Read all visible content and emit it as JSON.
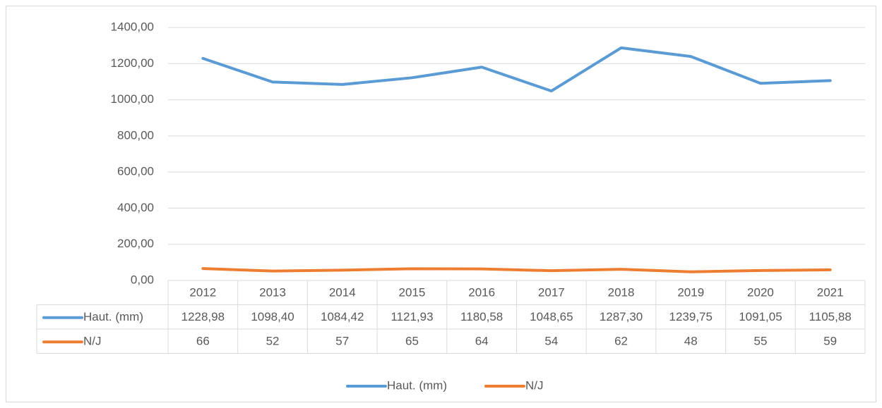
{
  "chart_data": {
    "type": "line",
    "categories": [
      "2012",
      "2013",
      "2014",
      "2015",
      "2016",
      "2017",
      "2018",
      "2019",
      "2020",
      "2021"
    ],
    "series": [
      {
        "name": "Haut. (mm)",
        "color": "#5b9bd5",
        "values": [
          1228.98,
          1098.4,
          1084.42,
          1121.93,
          1180.58,
          1048.65,
          1287.3,
          1239.75,
          1091.05,
          1105.88
        ],
        "value_labels": [
          "1228,98",
          "1098,40",
          "1084,42",
          "1121,93",
          "1180,58",
          "1048,65",
          "1287,30",
          "1239,75",
          "1091,05",
          "1105,88"
        ]
      },
      {
        "name": "N/J",
        "color": "#ed7d31",
        "values": [
          66,
          52,
          57,
          65,
          64,
          54,
          62,
          48,
          55,
          59
        ]
      }
    ],
    "ylim": [
      0,
      1400
    ],
    "yticks": [
      {
        "value": 0,
        "label": "0,00"
      },
      {
        "value": 200,
        "label": "200,00"
      },
      {
        "value": 400,
        "label": "400,00"
      },
      {
        "value": 600,
        "label": "600,00"
      },
      {
        "value": 800,
        "label": "800,00"
      },
      {
        "value": 1000,
        "label": "1000,00"
      },
      {
        "value": 1200,
        "label": "1200,00"
      },
      {
        "value": 1400,
        "label": "1400,00"
      }
    ],
    "grid": true,
    "legend": "bottom"
  }
}
